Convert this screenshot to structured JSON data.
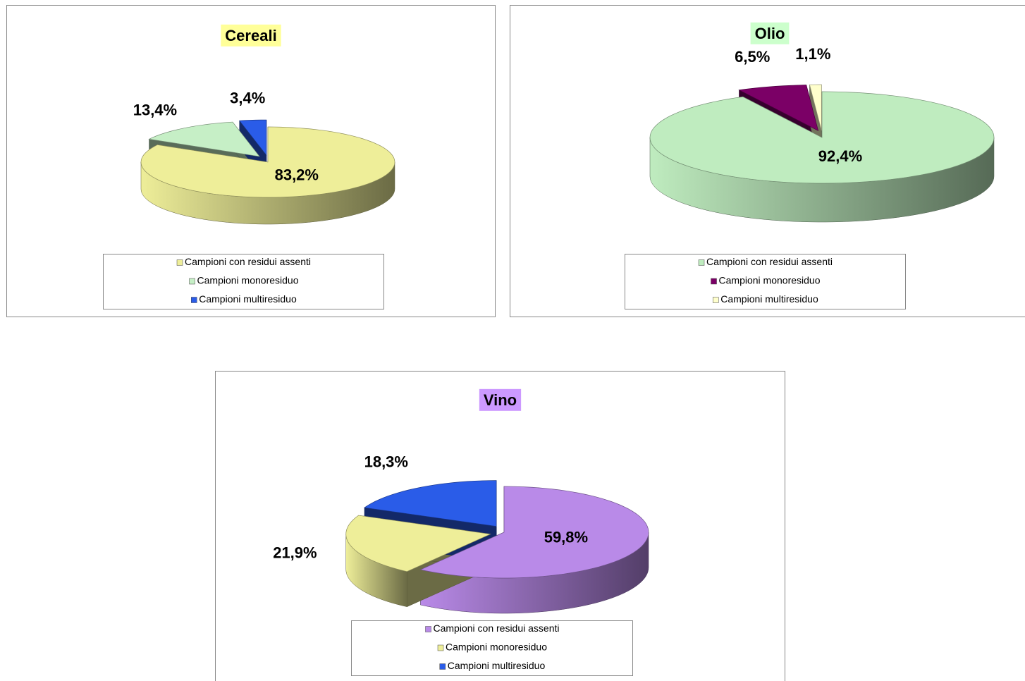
{
  "chart_data": [
    {
      "type": "pie",
      "title": "Cereali",
      "title_background": "#ffff99",
      "categories": [
        "Campioni con residui assenti",
        "Campioni monoresiduo",
        "Campioni multiresiduo"
      ],
      "values": [
        83.2,
        13.4,
        3.4
      ],
      "value_labels": [
        "83,2%",
        "13,4%",
        "3,4%"
      ],
      "colors": [
        "#eeee99",
        "#c6efc6",
        "#2a5ce8"
      ]
    },
    {
      "type": "pie",
      "title": "Olio",
      "title_background": "#ccffcc",
      "categories": [
        "Campioni con residui assenti",
        "Campioni monoresiduo",
        "Campioni multiresiduo"
      ],
      "values": [
        92.4,
        6.5,
        1.1
      ],
      "value_labels": [
        "92,4%",
        "6,5%",
        "1,1%"
      ],
      "colors": [
        "#bfecbf",
        "#7b0066",
        "#ffffcc"
      ]
    },
    {
      "type": "pie",
      "title": "Vino",
      "title_background": "#cc99ff",
      "categories": [
        "Campioni con residui assenti",
        "Campioni monoresiduo",
        "Campioni multiresiduo"
      ],
      "values": [
        59.8,
        21.9,
        18.3
      ],
      "value_labels": [
        "59,8%",
        "21,9%",
        "18,3%"
      ],
      "colors": [
        "#b98ae8",
        "#eeee99",
        "#2a5ce8"
      ]
    }
  ]
}
